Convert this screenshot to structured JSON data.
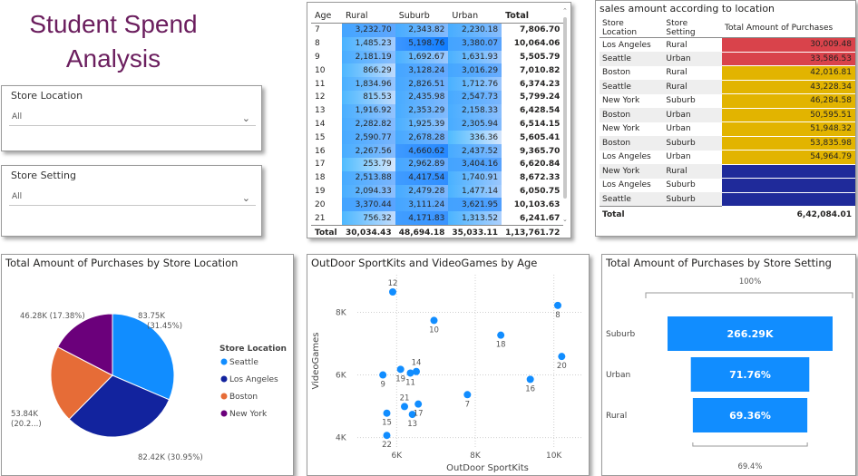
{
  "report": {
    "title_line1": "Student Spend",
    "title_line2": "Analysis"
  },
  "slicers": [
    {
      "label": "Store Location",
      "value": "All"
    },
    {
      "label": "Store Setting",
      "value": "All"
    }
  ],
  "age_matrix": {
    "headers": [
      "Age",
      "Rural",
      "Suburb",
      "Urban",
      "Total"
    ],
    "rows": [
      [
        "7",
        "3,232.70",
        "2,343.82",
        "2,230.18",
        "7,806.70"
      ],
      [
        "8",
        "1,485.23",
        "5,198.76",
        "3,380.07",
        "10,064.06"
      ],
      [
        "9",
        "2,181.19",
        "1,692.67",
        "1,631.93",
        "5,505.79"
      ],
      [
        "10",
        "866.29",
        "3,128.24",
        "3,016.29",
        "7,010.82"
      ],
      [
        "11",
        "1,834.96",
        "2,826.51",
        "1,712.76",
        "6,374.23"
      ],
      [
        "12",
        "815.53",
        "2,435.98",
        "2,547.73",
        "5,799.24"
      ],
      [
        "13",
        "1,916.92",
        "2,353.29",
        "2,158.33",
        "6,428.54"
      ],
      [
        "14",
        "2,282.82",
        "1,925.39",
        "2,305.94",
        "6,514.15"
      ],
      [
        "15",
        "2,590.77",
        "2,678.28",
        "336.36",
        "5,605.41"
      ],
      [
        "16",
        "2,267.56",
        "4,660.62",
        "2,437.52",
        "9,365.70"
      ],
      [
        "17",
        "253.79",
        "2,962.89",
        "3,404.16",
        "6,620.84"
      ],
      [
        "18",
        "2,513.88",
        "4,417.54",
        "1,740.91",
        "8,672.33"
      ],
      [
        "19",
        "2,094.33",
        "2,479.28",
        "1,477.14",
        "6,050.75"
      ],
      [
        "20",
        "3,370.44",
        "3,111.24",
        "3,621.95",
        "10,103.63"
      ],
      [
        "21",
        "756.32",
        "4,171.83",
        "1,313.52",
        "6,241.67"
      ]
    ],
    "total": [
      "Total",
      "30,034.43",
      "48,694.18",
      "35,033.11",
      "1,13,761.72"
    ]
  },
  "location_table": {
    "title": "sales amount according to location",
    "headers": [
      "Store Location",
      "Store Setting",
      "Total Amount of Purchases"
    ],
    "rows": [
      {
        "loc": "Los Angeles",
        "set": "Rural",
        "amt": "30,009.48",
        "color": "#d9434b"
      },
      {
        "loc": "Seattle",
        "set": "Urban",
        "amt": "33,586.53",
        "color": "#d9434b"
      },
      {
        "loc": "Boston",
        "set": "Rural",
        "amt": "42,016.81",
        "color": "#e2b400"
      },
      {
        "loc": "Seattle",
        "set": "Rural",
        "amt": "43,228.34",
        "color": "#e2b400"
      },
      {
        "loc": "New York",
        "set": "Suburb",
        "amt": "46,284.58",
        "color": "#e2b400"
      },
      {
        "loc": "Boston",
        "set": "Urban",
        "amt": "50,595.51",
        "color": "#e2b400"
      },
      {
        "loc": "New York",
        "set": "Urban",
        "amt": "51,948.32",
        "color": "#e2b400"
      },
      {
        "loc": "Boston",
        "set": "Suburb",
        "amt": "53,835.98",
        "color": "#e2b400"
      },
      {
        "loc": "Los Angeles",
        "set": "Urban",
        "amt": "54,964.79",
        "color": "#e2b400"
      },
      {
        "loc": "New York",
        "set": "Rural",
        "amt": "",
        "color": "#1f2a9a"
      },
      {
        "loc": "Los Angeles",
        "set": "Suburb",
        "amt": "",
        "color": "#1f2a9a"
      },
      {
        "loc": "Seattle",
        "set": "Suburb",
        "amt": "",
        "color": "#1f2a9a"
      }
    ],
    "total": {
      "label": "Total",
      "amt": "6,42,084.01"
    }
  },
  "pie_title": "Total Amount of Purchases by Store Location",
  "scatter_title": "OutDoor SportKits and VideoGames by Age",
  "funnel_title": "Total Amount of Purchases by Store Setting",
  "chart_data": [
    {
      "type": "pie",
      "title": "Total Amount of Purchases by Store Location",
      "legend_title": "Store Location",
      "legend_position": "right",
      "slices": [
        {
          "name": "Seattle",
          "value": 83.75,
          "label": "83.75K",
          "pct_label": "(31.45%)",
          "color": "#118dff"
        },
        {
          "name": "Los Angeles",
          "value": 82.42,
          "label": "82.42K (30.95%)",
          "color": "#12239e"
        },
        {
          "name": "Boston",
          "value": 53.84,
          "label": "53.84K",
          "pct_label": "(20.2...)",
          "color": "#e66c37"
        },
        {
          "name": "New York",
          "value": 46.28,
          "label": "46.28K (17.38%)",
          "color": "#6b007b"
        }
      ]
    },
    {
      "type": "scatter",
      "title": "OutDoor SportKits and VideoGames by Age",
      "xlabel": "OutDoor SportKits",
      "ylabel": "VideoGames",
      "xticks": [
        "6K",
        "8K",
        "10K"
      ],
      "yticks": [
        "4K",
        "6K",
        "8K"
      ],
      "xlim": [
        5000,
        10700
      ],
      "ylim": [
        3700,
        9200
      ],
      "points": [
        {
          "label": "7",
          "x": 7800,
          "y": 5370
        },
        {
          "label": "8",
          "x": 10100,
          "y": 8220
        },
        {
          "label": "9",
          "x": 5650,
          "y": 6000
        },
        {
          "label": "10",
          "x": 6950,
          "y": 7740
        },
        {
          "label": "11",
          "x": 6350,
          "y": 6060
        },
        {
          "label": "12",
          "x": 5900,
          "y": 8650
        },
        {
          "label": "13",
          "x": 6400,
          "y": 4740
        },
        {
          "label": "14",
          "x": 6500,
          "y": 6110
        },
        {
          "label": "15",
          "x": 5750,
          "y": 4780
        },
        {
          "label": "16",
          "x": 9400,
          "y": 5860
        },
        {
          "label": "17",
          "x": 6550,
          "y": 5070
        },
        {
          "label": "18",
          "x": 8650,
          "y": 7270
        },
        {
          "label": "19",
          "x": 6100,
          "y": 6180
        },
        {
          "label": "20",
          "x": 10200,
          "y": 6590
        },
        {
          "label": "21",
          "x": 6200,
          "y": 4990
        },
        {
          "label": "22",
          "x": 5750,
          "y": 4070
        }
      ]
    },
    {
      "type": "funnel",
      "title": "Total Amount of Purchases by Store Setting",
      "top_label": "100%",
      "bottom_label": "69.4%",
      "stages": [
        {
          "name": "Suburb",
          "value": 266.29,
          "label": "266.29K",
          "fraction": 1.0
        },
        {
          "name": "Urban",
          "value": 191.1,
          "label": "71.76%",
          "fraction": 0.7176
        },
        {
          "name": "Rural",
          "value": 184.7,
          "label": "69.36%",
          "fraction": 0.6936
        }
      ],
      "color": "#118dff"
    }
  ]
}
